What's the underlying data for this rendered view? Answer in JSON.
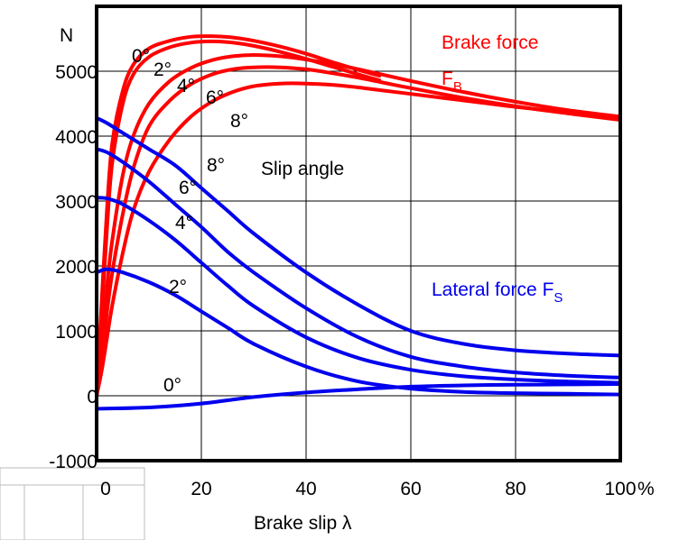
{
  "chart_data": {
    "type": "line",
    "xlabel": "Brake slip λ",
    "ylabel": "N",
    "xunit": "%",
    "xlim": [
      0,
      100
    ],
    "ylim": [
      -1000,
      6000
    ],
    "x_ticks": [
      0,
      20,
      40,
      60,
      80,
      100
    ],
    "y_ticks": [
      -1000,
      0,
      1000,
      2000,
      3000,
      4000,
      5000
    ],
    "grid": true,
    "colors": {
      "brake": "#ff0000",
      "lateral": "#0000ee",
      "axes": "#000000"
    },
    "annotations": {
      "brake_title": "Brake force",
      "brake_symbol": "F",
      "brake_sub": "B",
      "lateral_title": "Lateral force F",
      "lateral_sub": "S",
      "slip_angle": "Slip angle"
    },
    "brake_series": [
      {
        "name": "0°",
        "x": [
          0,
          1,
          2,
          3,
          5,
          7,
          10,
          14,
          18,
          22,
          26,
          30,
          35,
          40,
          45,
          50,
          54
        ],
        "y": [
          0,
          1500,
          2900,
          3900,
          4700,
          5100,
          5350,
          5470,
          5530,
          5540,
          5520,
          5470,
          5380,
          5270,
          5140,
          5020,
          4930
        ]
      },
      {
        "name": "2°",
        "x": [
          0,
          1,
          2,
          3,
          5,
          7,
          10,
          14,
          18,
          22,
          26,
          30,
          35,
          40,
          45,
          50,
          54
        ],
        "y": [
          0,
          1300,
          2600,
          3600,
          4500,
          4950,
          5220,
          5370,
          5440,
          5460,
          5440,
          5390,
          5300,
          5190,
          5070,
          4950,
          4860
        ]
      },
      {
        "name": "4°",
        "x": [
          0,
          1,
          2,
          3,
          5,
          7,
          10,
          14,
          18,
          22,
          26,
          30,
          35,
          40,
          45,
          50,
          55,
          60,
          70,
          80,
          90,
          100
        ],
        "y": [
          0,
          800,
          1700,
          2400,
          3400,
          4000,
          4500,
          4850,
          5050,
          5170,
          5230,
          5250,
          5230,
          5180,
          5110,
          5030,
          4940,
          4850,
          4680,
          4530,
          4400,
          4300
        ]
      },
      {
        "name": "6°",
        "x": [
          0,
          1,
          2,
          3,
          5,
          7,
          10,
          14,
          18,
          22,
          26,
          30,
          35,
          40,
          45,
          50,
          55,
          60,
          70,
          80,
          90,
          100
        ],
        "y": [
          0,
          600,
          1300,
          1900,
          2800,
          3500,
          4150,
          4550,
          4800,
          4950,
          5030,
          5060,
          5060,
          5030,
          4970,
          4900,
          4820,
          4740,
          4590,
          4460,
          4350,
          4250
        ]
      },
      {
        "name": "8°",
        "x": [
          0,
          1,
          2,
          3,
          5,
          7,
          10,
          14,
          18,
          22,
          26,
          30,
          35,
          40,
          45,
          50,
          55,
          60,
          70,
          80,
          90,
          100
        ],
        "y": [
          0,
          400,
          900,
          1400,
          2200,
          2850,
          3450,
          3950,
          4300,
          4530,
          4680,
          4770,
          4810,
          4810,
          4790,
          4750,
          4700,
          4650,
          4550,
          4450,
          4370,
          4300
        ]
      }
    ],
    "lateral_series": [
      {
        "name": "0°",
        "x": [
          0,
          10,
          20,
          30,
          40,
          50,
          60,
          70,
          80,
          90,
          100
        ],
        "y": [
          -200,
          -180,
          -120,
          -20,
          50,
          100,
          140,
          160,
          170,
          175,
          180
        ]
      },
      {
        "name": "2°",
        "x": [
          0,
          2,
          5,
          10,
          15,
          20,
          25,
          30,
          40,
          50,
          60,
          70,
          80,
          90,
          100
        ],
        "y": [
          1900,
          1950,
          1900,
          1750,
          1550,
          1300,
          1050,
          800,
          450,
          220,
          110,
          60,
          40,
          30,
          20
        ]
      },
      {
        "name": "4°",
        "x": [
          0,
          2,
          5,
          10,
          15,
          20,
          25,
          30,
          40,
          50,
          60,
          70,
          80,
          90,
          100
        ],
        "y": [
          3050,
          3040,
          2950,
          2700,
          2400,
          2050,
          1700,
          1380,
          900,
          580,
          400,
          300,
          250,
          220,
          200
        ]
      },
      {
        "name": "6°",
        "x": [
          0,
          2,
          5,
          10,
          15,
          20,
          25,
          30,
          40,
          50,
          60,
          70,
          80,
          90,
          100
        ],
        "y": [
          3800,
          3750,
          3600,
          3300,
          2950,
          2600,
          2220,
          1900,
          1350,
          900,
          600,
          450,
          360,
          310,
          280
        ]
      },
      {
        "name": "8°",
        "x": [
          0,
          2,
          5,
          10,
          15,
          20,
          25,
          30,
          40,
          50,
          60,
          70,
          80,
          90,
          100
        ],
        "y": [
          4280,
          4200,
          4050,
          3800,
          3550,
          3200,
          2850,
          2500,
          1900,
          1400,
          1000,
          800,
          700,
          650,
          620
        ]
      }
    ]
  }
}
